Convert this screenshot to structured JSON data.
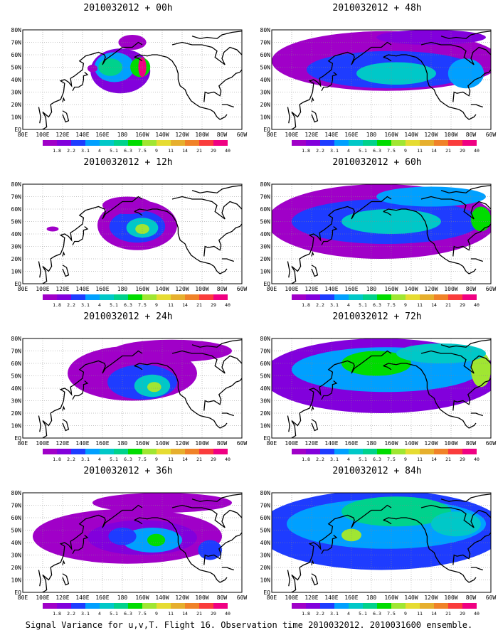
{
  "figure": {
    "caption": "Signal Variance for u,v,T. Flight 16. Observation time 2010032012. 2010031600 ensemble."
  },
  "colors": {
    "land_outline": "#000000",
    "grid": "#888888",
    "background": "#ffffff"
  },
  "chart_data": {
    "type": "heatmap",
    "region": "North Pacific",
    "xlim": [
      80,
      300
    ],
    "ylim": [
      0,
      80
    ],
    "grid": true,
    "x_tick_labels": [
      "80E",
      "100E",
      "120E",
      "140E",
      "160E",
      "180",
      "160W",
      "140W",
      "120W",
      "100W",
      "80W",
      "60W"
    ],
    "y_tick_labels": [
      "EQ",
      "10N",
      "20N",
      "30N",
      "40N",
      "50N",
      "60N",
      "70N",
      "80N"
    ],
    "colorbar": {
      "levels": [
        "1.8",
        "2.2",
        "3.1",
        "4",
        "5.1",
        "6.3",
        "7.5",
        "9",
        "11",
        "14",
        "21",
        "29",
        "40"
      ],
      "colors": [
        "#a000c8",
        "#8200dc",
        "#1e3cff",
        "#00a0ff",
        "#00c8c8",
        "#00d28c",
        "#00dc00",
        "#a0e632",
        "#e6dc32",
        "#e6af2d",
        "#f08228",
        "#fa3c3c",
        "#f00082"
      ]
    },
    "panels": [
      {
        "title": "2010032012 + 00h",
        "blobs": [
          {
            "lon": 178,
            "lat": 47,
            "rx": 30,
            "ry": 18,
            "v": 2.2
          },
          {
            "lon": 172,
            "lat": 50,
            "rx": 20,
            "ry": 12,
            "v": 4
          },
          {
            "lon": 168,
            "lat": 50,
            "rx": 12,
            "ry": 7,
            "v": 6.3
          },
          {
            "lon": 198,
            "lat": 50,
            "rx": 10,
            "ry": 8,
            "v": 7.5
          },
          {
            "lon": 200,
            "lat": 50,
            "rx": 4,
            "ry": 8,
            "v": 40
          },
          {
            "lon": 150,
            "lat": 49,
            "rx": 5,
            "ry": 3,
            "v": 1.8
          },
          {
            "lon": 190,
            "lat": 70,
            "rx": 14,
            "ry": 6,
            "v": 1.8
          }
        ]
      },
      {
        "title": "2010032012 + 12h",
        "blobs": [
          {
            "lon": 195,
            "lat": 47,
            "rx": 40,
            "ry": 20,
            "v": 1.8
          },
          {
            "lon": 195,
            "lat": 46,
            "rx": 28,
            "ry": 13,
            "v": 3.1
          },
          {
            "lon": 200,
            "lat": 45,
            "rx": 16,
            "ry": 8,
            "v": 5.1
          },
          {
            "lon": 200,
            "lat": 44,
            "rx": 7,
            "ry": 4,
            "v": 9
          },
          {
            "lon": 110,
            "lat": 44,
            "rx": 6,
            "ry": 2,
            "v": 1.8
          },
          {
            "lon": 185,
            "lat": 63,
            "rx": 25,
            "ry": 7,
            "v": 1.8
          }
        ]
      },
      {
        "title": "2010032012 + 24h",
        "blobs": [
          {
            "lon": 190,
            "lat": 52,
            "rx": 65,
            "ry": 22,
            "v": 1.8
          },
          {
            "lon": 200,
            "lat": 45,
            "rx": 35,
            "ry": 14,
            "v": 3.1
          },
          {
            "lon": 210,
            "lat": 42,
            "rx": 18,
            "ry": 9,
            "v": 5.1
          },
          {
            "lon": 212,
            "lat": 41,
            "rx": 7,
            "ry": 4,
            "v": 9
          },
          {
            "lon": 230,
            "lat": 70,
            "rx": 60,
            "ry": 9,
            "v": 1.8
          }
        ]
      },
      {
        "title": "2010032012 + 36h",
        "blobs": [
          {
            "lon": 185,
            "lat": 45,
            "rx": 95,
            "ry": 22,
            "v": 1.8
          },
          {
            "lon": 200,
            "lat": 44,
            "rx": 55,
            "ry": 14,
            "v": 2.2
          },
          {
            "lon": 210,
            "lat": 42,
            "rx": 30,
            "ry": 10,
            "v": 4
          },
          {
            "lon": 214,
            "lat": 42,
            "rx": 9,
            "ry": 5,
            "v": 7.5
          },
          {
            "lon": 180,
            "lat": 45,
            "rx": 14,
            "ry": 7,
            "v": 3.1
          },
          {
            "lon": 268,
            "lat": 34,
            "rx": 12,
            "ry": 8,
            "v": 3.1
          },
          {
            "lon": 220,
            "lat": 72,
            "rx": 70,
            "ry": 8,
            "v": 1.8
          }
        ]
      },
      {
        "title": "2010032012 + 48h",
        "blobs": [
          {
            "lon": 195,
            "lat": 55,
            "rx": 115,
            "ry": 24,
            "v": 1.8
          },
          {
            "lon": 200,
            "lat": 48,
            "rx": 85,
            "ry": 15,
            "v": 3.1
          },
          {
            "lon": 205,
            "lat": 45,
            "rx": 40,
            "ry": 9,
            "v": 5.1
          },
          {
            "lon": 275,
            "lat": 45,
            "rx": 18,
            "ry": 12,
            "v": 4
          },
          {
            "lon": 240,
            "lat": 74,
            "rx": 55,
            "ry": 6,
            "v": 2.2
          }
        ]
      },
      {
        "title": "2010032012 + 60h",
        "blobs": [
          {
            "lon": 190,
            "lat": 50,
            "rx": 115,
            "ry": 30,
            "v": 1.8
          },
          {
            "lon": 195,
            "lat": 50,
            "rx": 95,
            "ry": 18,
            "v": 3.1
          },
          {
            "lon": 200,
            "lat": 50,
            "rx": 50,
            "ry": 10,
            "v": 5.1
          },
          {
            "lon": 290,
            "lat": 52,
            "rx": 10,
            "ry": 10,
            "v": 7.5
          },
          {
            "lon": 240,
            "lat": 70,
            "rx": 55,
            "ry": 8,
            "v": 4
          }
        ]
      },
      {
        "title": "2010032012 + 72h",
        "blobs": [
          {
            "lon": 190,
            "lat": 50,
            "rx": 120,
            "ry": 30,
            "v": 2.2
          },
          {
            "lon": 195,
            "lat": 55,
            "rx": 95,
            "ry": 18,
            "v": 4
          },
          {
            "lon": 185,
            "lat": 60,
            "rx": 35,
            "ry": 10,
            "v": 7.5
          },
          {
            "lon": 290,
            "lat": 55,
            "rx": 10,
            "ry": 14,
            "v": 9
          },
          {
            "lon": 250,
            "lat": 68,
            "rx": 45,
            "ry": 8,
            "v": 5.1
          }
        ]
      },
      {
        "title": "2010032012 + 84h",
        "blobs": [
          {
            "lon": 190,
            "lat": 50,
            "rx": 125,
            "ry": 32,
            "v": 3.1
          },
          {
            "lon": 195,
            "lat": 55,
            "rx": 100,
            "ry": 20,
            "v": 4
          },
          {
            "lon": 205,
            "lat": 65,
            "rx": 55,
            "ry": 12,
            "v": 6.3
          },
          {
            "lon": 160,
            "lat": 46,
            "rx": 10,
            "ry": 5,
            "v": 9
          },
          {
            "lon": 265,
            "lat": 55,
            "rx": 25,
            "ry": 10,
            "v": 5.1
          }
        ]
      }
    ]
  }
}
